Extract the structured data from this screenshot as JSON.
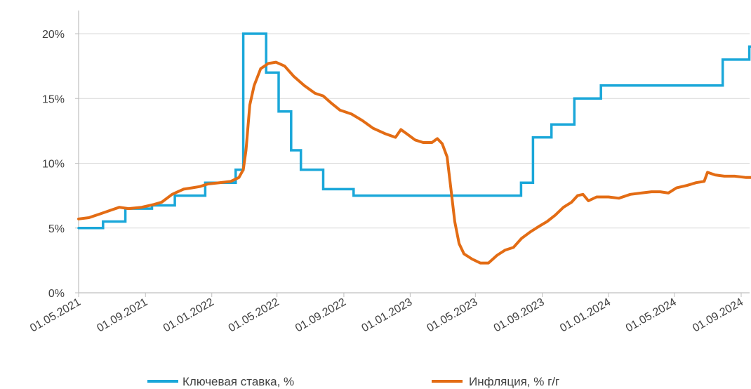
{
  "chart_data": {
    "type": "line",
    "title": "",
    "xlabel": "",
    "ylabel": "",
    "ylim": [
      0,
      20
    ],
    "xlim": [
      "2021-05-01",
      "2024-10-07"
    ],
    "grid": "horizontal",
    "legend_position": "bottom",
    "y_ticks": [
      {
        "value": 0,
        "label": "0%"
      },
      {
        "value": 5,
        "label": "5%"
      },
      {
        "value": 10,
        "label": "10%"
      },
      {
        "value": 15,
        "label": "15%"
      },
      {
        "value": 20,
        "label": "20%"
      }
    ],
    "x_ticks": [
      {
        "date": "2021-05-01",
        "label": "01.05.2021"
      },
      {
        "date": "2021-09-01",
        "label": "01.09.2021"
      },
      {
        "date": "2022-01-01",
        "label": "01.01.2022"
      },
      {
        "date": "2022-05-01",
        "label": "01.05.2022"
      },
      {
        "date": "2022-09-01",
        "label": "01.09.2022"
      },
      {
        "date": "2023-01-01",
        "label": "01.01.2023"
      },
      {
        "date": "2023-05-01",
        "label": "01.05.2023"
      },
      {
        "date": "2023-09-01",
        "label": "01.09.2023"
      },
      {
        "date": "2024-01-01",
        "label": "01.01.2024"
      },
      {
        "date": "2024-05-01",
        "label": "01.05.2024"
      },
      {
        "date": "2024-09-01",
        "label": "01.09.2024"
      }
    ],
    "series": [
      {
        "name": "Ключевая ставка, %",
        "color": "#1aa7d9",
        "step": true,
        "points": [
          [
            "2021-05-01",
            5.0
          ],
          [
            "2021-06-15",
            5.5
          ],
          [
            "2021-07-26",
            6.5
          ],
          [
            "2021-09-13",
            6.75
          ],
          [
            "2021-10-25",
            7.5
          ],
          [
            "2021-12-20",
            8.5
          ],
          [
            "2022-02-14",
            9.5
          ],
          [
            "2022-02-28",
            20.0
          ],
          [
            "2022-04-11",
            17.0
          ],
          [
            "2022-05-04",
            14.0
          ],
          [
            "2022-05-27",
            11.0
          ],
          [
            "2022-06-14",
            9.5
          ],
          [
            "2022-07-25",
            8.0
          ],
          [
            "2022-09-19",
            7.5
          ],
          [
            "2023-07-24",
            8.5
          ],
          [
            "2023-08-15",
            12.0
          ],
          [
            "2023-09-18",
            13.0
          ],
          [
            "2023-10-30",
            15.0
          ],
          [
            "2023-12-18",
            16.0
          ],
          [
            "2024-07-29",
            18.0
          ],
          [
            "2024-09-16",
            19.0
          ],
          [
            "2024-10-07",
            19.0
          ]
        ]
      },
      {
        "name": "Инфляция, % г/г",
        "color": "#e36c14",
        "step": false,
        "points": [
          [
            "2021-05-01",
            5.7
          ],
          [
            "2021-05-20",
            5.8
          ],
          [
            "2021-06-10",
            6.1
          ],
          [
            "2021-07-01",
            6.4
          ],
          [
            "2021-07-15",
            6.6
          ],
          [
            "2021-08-01",
            6.5
          ],
          [
            "2021-08-25",
            6.6
          ],
          [
            "2021-09-15",
            6.8
          ],
          [
            "2021-10-01",
            7.0
          ],
          [
            "2021-10-20",
            7.6
          ],
          [
            "2021-11-10",
            8.0
          ],
          [
            "2021-11-25",
            8.1
          ],
          [
            "2021-12-10",
            8.2
          ],
          [
            "2021-12-25",
            8.4
          ],
          [
            "2022-01-15",
            8.5
          ],
          [
            "2022-02-05",
            8.6
          ],
          [
            "2022-02-20",
            8.9
          ],
          [
            "2022-02-28",
            9.5
          ],
          [
            "2022-03-05",
            11.0
          ],
          [
            "2022-03-12",
            14.5
          ],
          [
            "2022-03-20",
            16.0
          ],
          [
            "2022-04-01",
            17.3
          ],
          [
            "2022-04-15",
            17.7
          ],
          [
            "2022-04-29",
            17.8
          ],
          [
            "2022-05-15",
            17.5
          ],
          [
            "2022-06-01",
            16.7
          ],
          [
            "2022-06-20",
            16.0
          ],
          [
            "2022-07-10",
            15.4
          ],
          [
            "2022-07-25",
            15.2
          ],
          [
            "2022-08-10",
            14.6
          ],
          [
            "2022-08-25",
            14.1
          ],
          [
            "2022-09-15",
            13.8
          ],
          [
            "2022-10-05",
            13.3
          ],
          [
            "2022-10-25",
            12.7
          ],
          [
            "2022-11-15",
            12.3
          ],
          [
            "2022-12-05",
            12.0
          ],
          [
            "2022-12-15",
            12.6
          ],
          [
            "2022-12-25",
            12.3
          ],
          [
            "2023-01-10",
            11.8
          ],
          [
            "2023-01-25",
            11.6
          ],
          [
            "2023-02-10",
            11.6
          ],
          [
            "2023-02-20",
            11.9
          ],
          [
            "2023-03-01",
            11.5
          ],
          [
            "2023-03-10",
            10.5
          ],
          [
            "2023-03-17",
            8.0
          ],
          [
            "2023-03-24",
            5.5
          ],
          [
            "2023-04-01",
            3.8
          ],
          [
            "2023-04-10",
            3.0
          ],
          [
            "2023-04-25",
            2.6
          ],
          [
            "2023-05-10",
            2.3
          ],
          [
            "2023-05-25",
            2.3
          ],
          [
            "2023-06-10",
            2.9
          ],
          [
            "2023-06-25",
            3.3
          ],
          [
            "2023-07-10",
            3.5
          ],
          [
            "2023-07-25",
            4.2
          ],
          [
            "2023-08-10",
            4.7
          ],
          [
            "2023-08-25",
            5.1
          ],
          [
            "2023-09-10",
            5.5
          ],
          [
            "2023-09-25",
            6.0
          ],
          [
            "2023-10-10",
            6.6
          ],
          [
            "2023-10-25",
            7.0
          ],
          [
            "2023-11-05",
            7.5
          ],
          [
            "2023-11-15",
            7.6
          ],
          [
            "2023-11-25",
            7.1
          ],
          [
            "2023-12-10",
            7.4
          ],
          [
            "2024-01-01",
            7.4
          ],
          [
            "2024-01-20",
            7.3
          ],
          [
            "2024-02-10",
            7.6
          ],
          [
            "2024-03-01",
            7.7
          ],
          [
            "2024-03-20",
            7.8
          ],
          [
            "2024-04-05",
            7.8
          ],
          [
            "2024-04-20",
            7.7
          ],
          [
            "2024-05-05",
            8.1
          ],
          [
            "2024-05-25",
            8.3
          ],
          [
            "2024-06-10",
            8.5
          ],
          [
            "2024-06-25",
            8.6
          ],
          [
            "2024-07-01",
            9.3
          ],
          [
            "2024-07-15",
            9.1
          ],
          [
            "2024-08-01",
            9.0
          ],
          [
            "2024-08-20",
            9.0
          ],
          [
            "2024-09-10",
            8.9
          ],
          [
            "2024-09-25",
            8.9
          ],
          [
            "2024-10-07",
            8.7
          ]
        ]
      }
    ]
  }
}
